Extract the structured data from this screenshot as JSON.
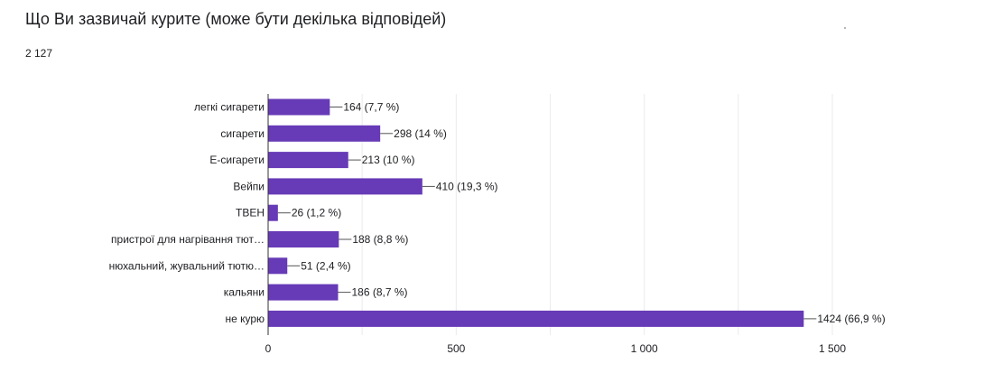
{
  "title": "Що Ви зазвичай курите (може бути декілька відповідей)",
  "response_count": "2 127",
  "chart_data": {
    "type": "bar",
    "orientation": "horizontal",
    "categories": [
      "легкі сигарети",
      "сигарети",
      "Е-сигарети",
      "Вейпи",
      "ТВЕН",
      "пристрої для нагрівання тют…",
      "нюхальний, жувальний тютю…",
      "кальяни",
      "не курю"
    ],
    "values": [
      164,
      298,
      213,
      410,
      26,
      188,
      51,
      186,
      1424
    ],
    "data_labels": [
      "164 (7,7 %)",
      "298 (14 %)",
      "213 (10 %)",
      "410 (19,3 %)",
      "26 (1,2 %)",
      "188 (8,8 %)",
      "51 (2,4 %)",
      "186 (8,7 %)",
      "1424 (66,9 %)"
    ],
    "xticks": [
      0,
      500,
      1000,
      1500
    ],
    "xtick_labels": [
      "0",
      "500",
      "1 000",
      "1 500"
    ],
    "xlim": [
      0,
      1500
    ],
    "grid": true,
    "color": "#673ab7"
  }
}
